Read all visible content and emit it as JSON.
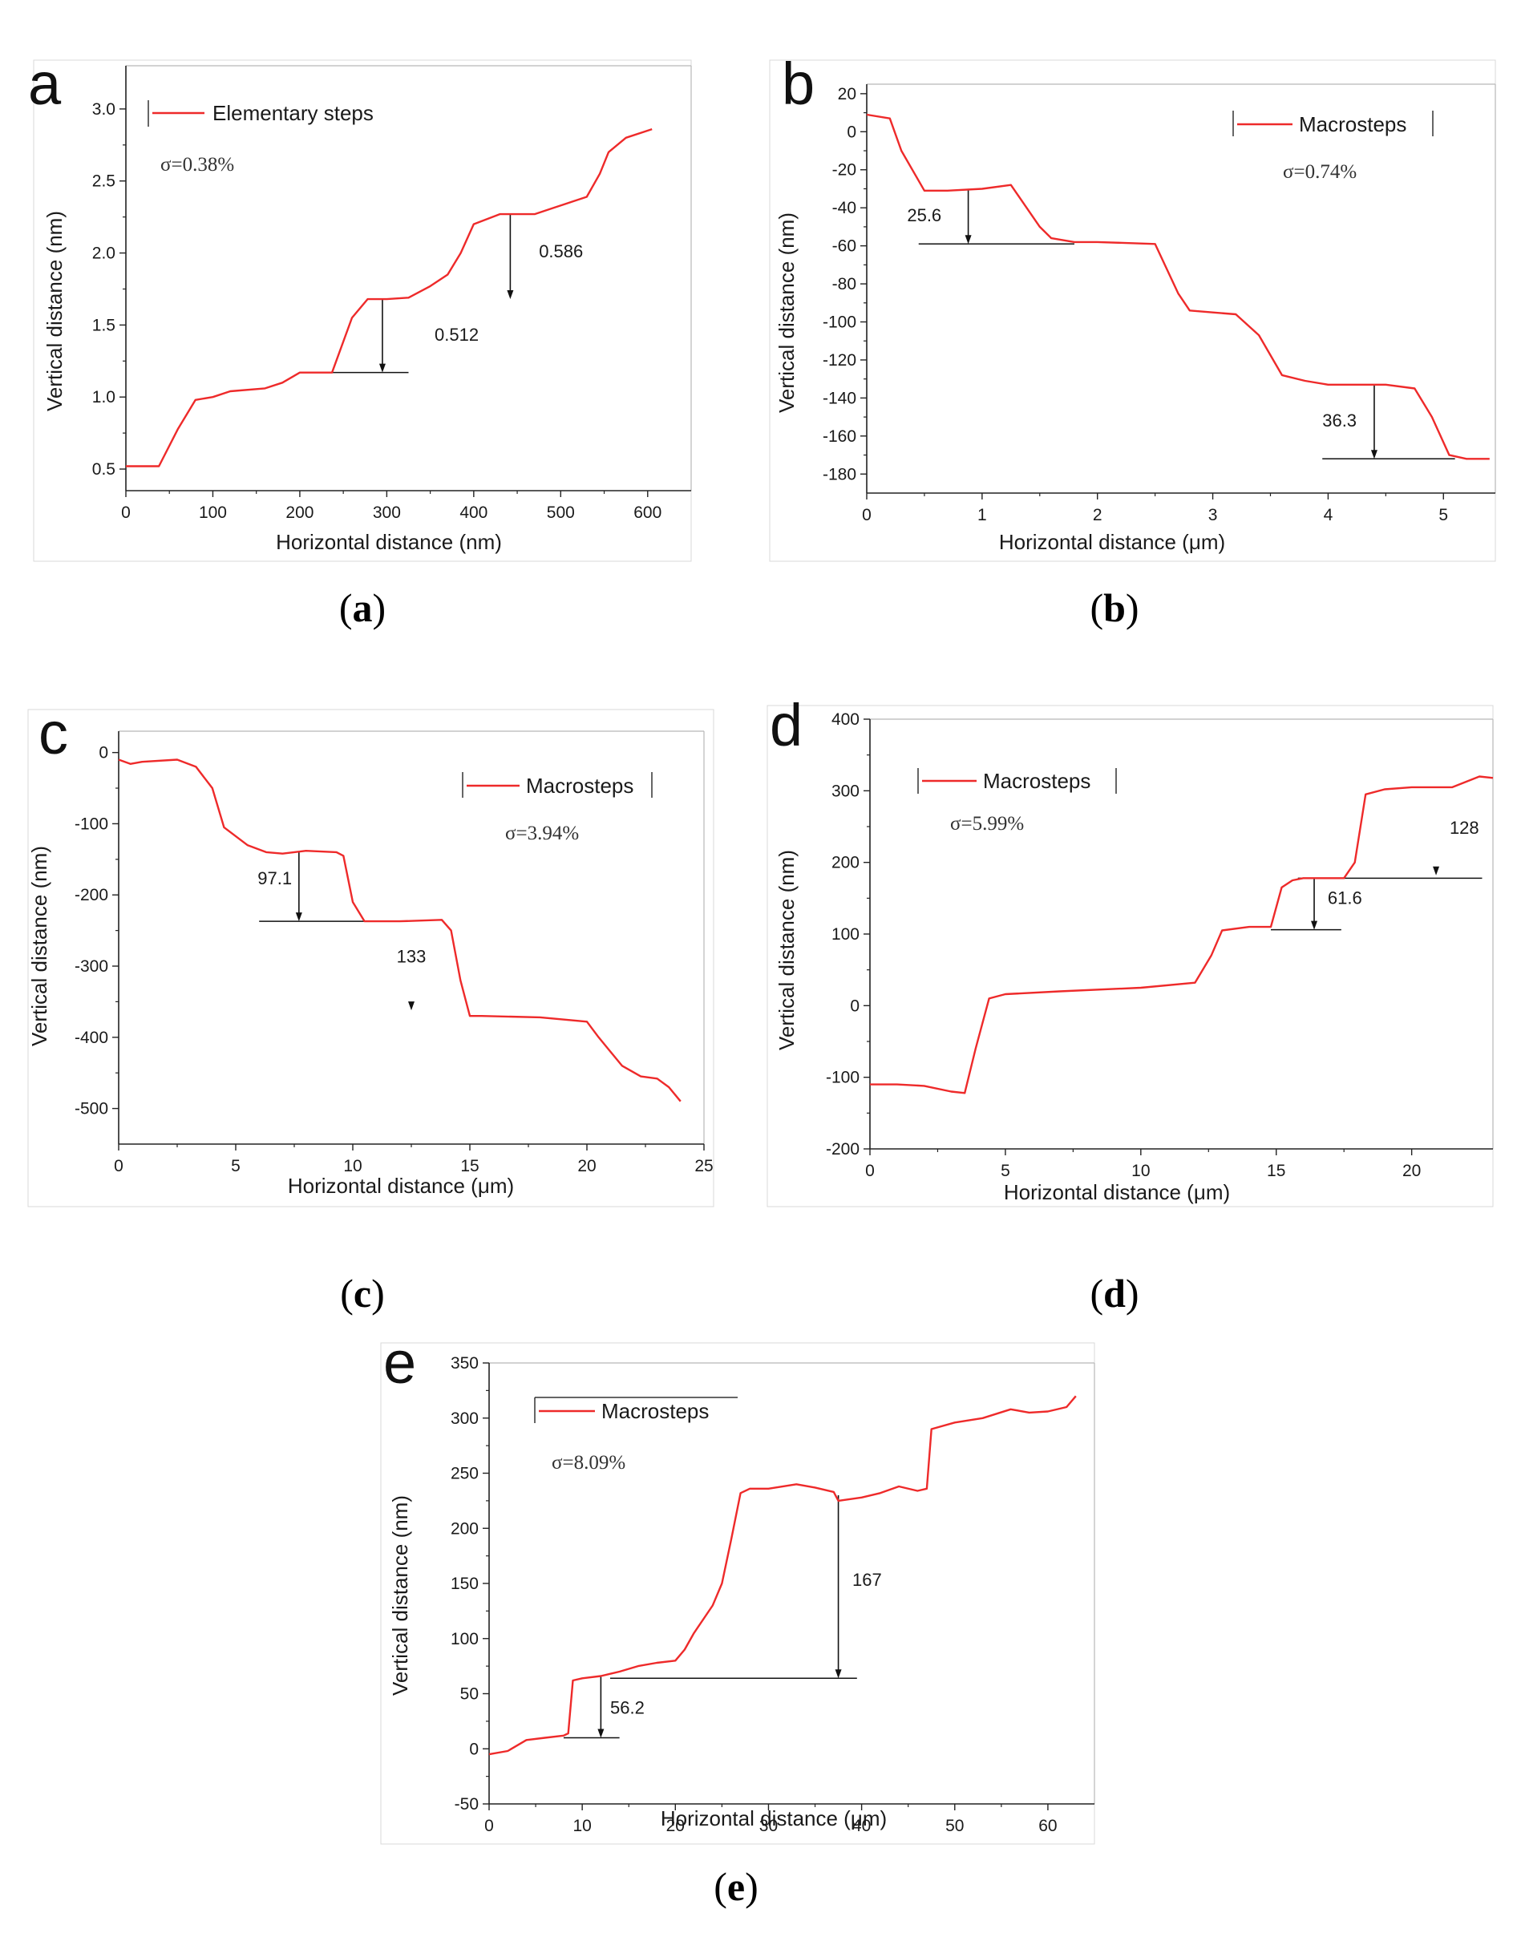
{
  "colors": {
    "series": "#ee2a2a",
    "axis": "#222222",
    "frame": "#b8b8b8",
    "annotation": "#111111"
  },
  "chart_data": [
    {
      "id": "a",
      "type": "line",
      "panel_label": "a",
      "caption": {
        "open": "(",
        "letter": "a",
        "close": ")"
      },
      "xlabel": "Horizontal distance (nm)",
      "ylabel": "Vertical distance (nm)",
      "xlim": [
        0,
        650
      ],
      "ylim": [
        0.35,
        3.3
      ],
      "xticks": [
        0,
        100,
        200,
        300,
        400,
        500,
        600
      ],
      "yticks": [
        0.5,
        1.0,
        1.5,
        2.0,
        2.5,
        3.0
      ],
      "xtick_labels": [
        "0",
        "100",
        "200",
        "300",
        "400",
        "500",
        "600"
      ],
      "ytick_labels": [
        "0.5",
        "1.0",
        "1.5",
        "2.0",
        "2.5",
        "3.0"
      ],
      "legend": "Elementary steps",
      "sigma": "σ=0.38%",
      "series": [
        {
          "name": "Elementary steps",
          "x": [
            0,
            38,
            60,
            80,
            100,
            120,
            160,
            180,
            200,
            237,
            260,
            278,
            300,
            325,
            350,
            370,
            385,
            400,
            430,
            470,
            490,
            515,
            530,
            545,
            555,
            575,
            605
          ],
          "y": [
            0.52,
            0.52,
            0.78,
            0.98,
            1.0,
            1.04,
            1.06,
            1.1,
            1.17,
            1.17,
            1.55,
            1.68,
            1.68,
            1.69,
            1.77,
            1.85,
            2.0,
            2.2,
            2.27,
            2.27,
            2.31,
            2.36,
            2.39,
            2.55,
            2.7,
            2.8,
            2.86
          ]
        }
      ],
      "annotations": [
        {
          "text": "0.512",
          "x0": 237,
          "x1": 325,
          "base": 1.17,
          "arrow_x": 295,
          "arrow_from": 1.68,
          "arrow_to": 1.17,
          "label_x": 355,
          "label_y": 1.39,
          "anchor": "start"
        },
        {
          "text": "0.586",
          "x0": 0,
          "x1": 0,
          "base": null,
          "arrow_x": 442,
          "arrow_from": 2.27,
          "arrow_to": 1.68,
          "label_x": 475,
          "label_y": 1.97,
          "anchor": "start"
        }
      ]
    },
    {
      "id": "b",
      "type": "line",
      "panel_label": "b",
      "caption": {
        "open": "(",
        "letter": "b",
        "close": ")"
      },
      "xlabel": "Horizontal distance (μm)",
      "ylabel": "Vertical distance (nm)",
      "xlim": [
        0,
        5.45
      ],
      "ylim": [
        -190,
        25
      ],
      "xticks": [
        0,
        1,
        2,
        3,
        4,
        5
      ],
      "yticks": [
        20,
        0,
        -20,
        -40,
        -60,
        -80,
        -100,
        -120,
        -140,
        -160,
        -180
      ],
      "xtick_labels": [
        "0",
        "1",
        "2",
        "3",
        "4",
        "5"
      ],
      "ytick_labels": [
        "20",
        "0",
        "-20",
        "-40",
        "-60",
        "-80",
        "-100",
        "-120",
        "-140",
        "-160",
        "-180"
      ],
      "legend": "Macrosteps",
      "sigma": "σ=0.74%",
      "series": [
        {
          "name": "Macrosteps",
          "x": [
            0,
            0.2,
            0.3,
            0.5,
            0.7,
            1.0,
            1.25,
            1.5,
            1.6,
            1.8,
            2.0,
            2.5,
            2.7,
            2.8,
            3.0,
            3.2,
            3.4,
            3.6,
            3.8,
            4.0,
            4.5,
            4.75,
            4.9,
            5.05,
            5.2,
            5.4
          ],
          "y": [
            9,
            7,
            -10,
            -31,
            -31,
            -30,
            -28,
            -50,
            -56,
            -58,
            -58,
            -59,
            -85,
            -94,
            -95,
            -96,
            -107,
            -128,
            -131,
            -133,
            -133,
            -135,
            -150,
            -170,
            -172,
            -172
          ]
        }
      ],
      "annotations": [
        {
          "text": "25.6",
          "x0": 0.45,
          "x1": 1.8,
          "base": -59,
          "arrow_x": 0.88,
          "arrow_from": -30,
          "arrow_to": -59,
          "label_x": 0.35,
          "label_y": -47,
          "anchor": "start"
        },
        {
          "text": "36.3",
          "x0": 3.95,
          "x1": 5.1,
          "base": -172,
          "arrow_x": 4.4,
          "arrow_from": -133,
          "arrow_to": -172,
          "label_x": 3.95,
          "label_y": -155,
          "anchor": "start"
        }
      ]
    },
    {
      "id": "c",
      "type": "line",
      "panel_label": "c",
      "caption": {
        "open": "(",
        "letter": "c",
        "close": ")"
      },
      "xlabel": "Horizontal distance (μm)",
      "ylabel": "Vertical distance (nm)",
      "xlim": [
        0,
        25
      ],
      "ylim": [
        -550,
        30
      ],
      "xticks": [
        0,
        5,
        10,
        15,
        20,
        25
      ],
      "yticks": [
        0,
        -100,
        -200,
        -300,
        -400,
        -500
      ],
      "xtick_labels": [
        "0",
        "5",
        "10",
        "15",
        "20",
        "25"
      ],
      "ytick_labels": [
        "0",
        "-100",
        "-200",
        "-300",
        "-400",
        "-500"
      ],
      "legend": "Macrosteps",
      "sigma": "σ=3.94%",
      "series": [
        {
          "name": "Macrosteps",
          "x": [
            0,
            0.5,
            1,
            2.5,
            3.3,
            4,
            4.5,
            5.5,
            6.3,
            7,
            8,
            9.3,
            9.6,
            10,
            10.5,
            12,
            13.8,
            14.2,
            14.6,
            15,
            15.5,
            18,
            20,
            20.5,
            21.5,
            22.3,
            23,
            23.5,
            24
          ],
          "y": [
            -10,
            -16,
            -13,
            -10,
            -20,
            -50,
            -105,
            -130,
            -140,
            -142,
            -138,
            -140,
            -145,
            -210,
            -237,
            -237,
            -235,
            -250,
            -320,
            -370,
            -370,
            -372,
            -378,
            -400,
            -440,
            -455,
            -458,
            -470,
            -490
          ]
        }
      ],
      "annotations": [
        {
          "text": "97.1",
          "x0": 6,
          "x1": 10.5,
          "base": -237,
          "arrow_x": 7.7,
          "arrow_from": -140,
          "arrow_to": -237,
          "label_x": 7.4,
          "label_y": -185,
          "anchor": "end"
        },
        {
          "text": "133",
          "x0": 0,
          "x1": 0,
          "base": null,
          "arrow_x": 12.5,
          "arrow_from": -353,
          "arrow_to": -362,
          "label_x": 12.5,
          "label_y": -295,
          "anchor": "middle"
        }
      ]
    },
    {
      "id": "d",
      "type": "line",
      "panel_label": "d",
      "caption": {
        "open": "(",
        "letter": "d",
        "close": ")"
      },
      "xlabel": "Horizontal distance (μm)",
      "ylabel": "Vertical distance (nm)",
      "xlim": [
        0,
        23
      ],
      "ylim": [
        -200,
        400
      ],
      "xticks": [
        0,
        5,
        10,
        15,
        20
      ],
      "yticks": [
        400,
        300,
        200,
        100,
        0,
        -100,
        -200
      ],
      "xtick_labels": [
        "0",
        "5",
        "10",
        "15",
        "20"
      ],
      "ytick_labels": [
        "400",
        "300",
        "200",
        "100",
        "0",
        "-100",
        "-200"
      ],
      "legend": "Macrosteps",
      "sigma": "σ=5.99%",
      "series": [
        {
          "name": "Macrosteps",
          "x": [
            0,
            1,
            2,
            3,
            3.5,
            3.9,
            4.4,
            5,
            7,
            10,
            12,
            12.6,
            13,
            14,
            14.8,
            15.2,
            15.6,
            16,
            17.5,
            17.9,
            18.3,
            19,
            20,
            21.5,
            22.5,
            23
          ],
          "y": [
            -110,
            -110,
            -112,
            -120,
            -122,
            -60,
            10,
            16,
            20,
            25,
            32,
            70,
            105,
            110,
            110,
            165,
            175,
            178,
            178,
            200,
            295,
            302,
            305,
            305,
            320,
            318
          ]
        }
      ],
      "annotations": [
        {
          "text": "61.6",
          "x0": 14.8,
          "x1": 17.4,
          "base": 106,
          "arrow_x": 16.4,
          "arrow_from": 178,
          "arrow_to": 106,
          "label_x": 16.9,
          "label_y": 142,
          "anchor": "start"
        },
        {
          "text": "128",
          "x0": 15.8,
          "x1": 22.6,
          "base": 178,
          "arrow_x": 20.9,
          "arrow_from": 192,
          "arrow_to": 182,
          "label_x": 21.4,
          "label_y": 240,
          "anchor": "start"
        }
      ]
    },
    {
      "id": "e",
      "type": "line",
      "panel_label": "e",
      "caption": {
        "open": "(",
        "letter": "e",
        "close": ")"
      },
      "xlabel": "Horizontal distance (μm)",
      "ylabel": "Vertical distance (nm)",
      "xlim": [
        0,
        65
      ],
      "ylim": [
        -50,
        350
      ],
      "xticks": [
        0,
        10,
        20,
        30,
        40,
        50,
        60
      ],
      "yticks": [
        350,
        300,
        250,
        200,
        150,
        100,
        50,
        0,
        -50
      ],
      "xtick_labels": [
        "0",
        "10",
        "20",
        "30",
        "40",
        "50",
        "60"
      ],
      "ytick_labels": [
        "350",
        "300",
        "250",
        "200",
        "150",
        "100",
        "50",
        "0",
        "-50"
      ],
      "legend": "Macrosteps",
      "sigma": "σ=8.09%",
      "series": [
        {
          "name": "Macrosteps",
          "x": [
            0,
            2,
            4,
            6,
            8,
            8.5,
            9,
            10,
            12,
            14,
            16,
            18,
            20,
            21,
            22,
            24,
            25,
            26,
            27,
            28,
            30,
            33,
            35,
            37,
            37.5,
            40,
            42,
            44,
            46,
            47,
            47.5,
            50,
            53,
            56,
            58,
            60,
            62,
            63
          ],
          "y": [
            -5,
            -2,
            8,
            10,
            12,
            14,
            62,
            64,
            66,
            70,
            75,
            78,
            80,
            90,
            105,
            130,
            150,
            190,
            232,
            236,
            236,
            240,
            237,
            233,
            225,
            228,
            232,
            238,
            234,
            236,
            290,
            296,
            300,
            308,
            305,
            306,
            310,
            320
          ]
        }
      ],
      "annotations": [
        {
          "text": "56.2",
          "x0": 8,
          "x1": 14,
          "base": 10,
          "arrow_x": 12,
          "arrow_from": 66,
          "arrow_to": 10,
          "label_x": 13,
          "label_y": 32,
          "anchor": "start"
        },
        {
          "text": "167",
          "x0": 13,
          "x1": 39.5,
          "base": 64,
          "arrow_x": 37.5,
          "arrow_from": 230,
          "arrow_to": 64,
          "label_x": 39,
          "label_y": 148,
          "anchor": "start"
        }
      ]
    }
  ]
}
